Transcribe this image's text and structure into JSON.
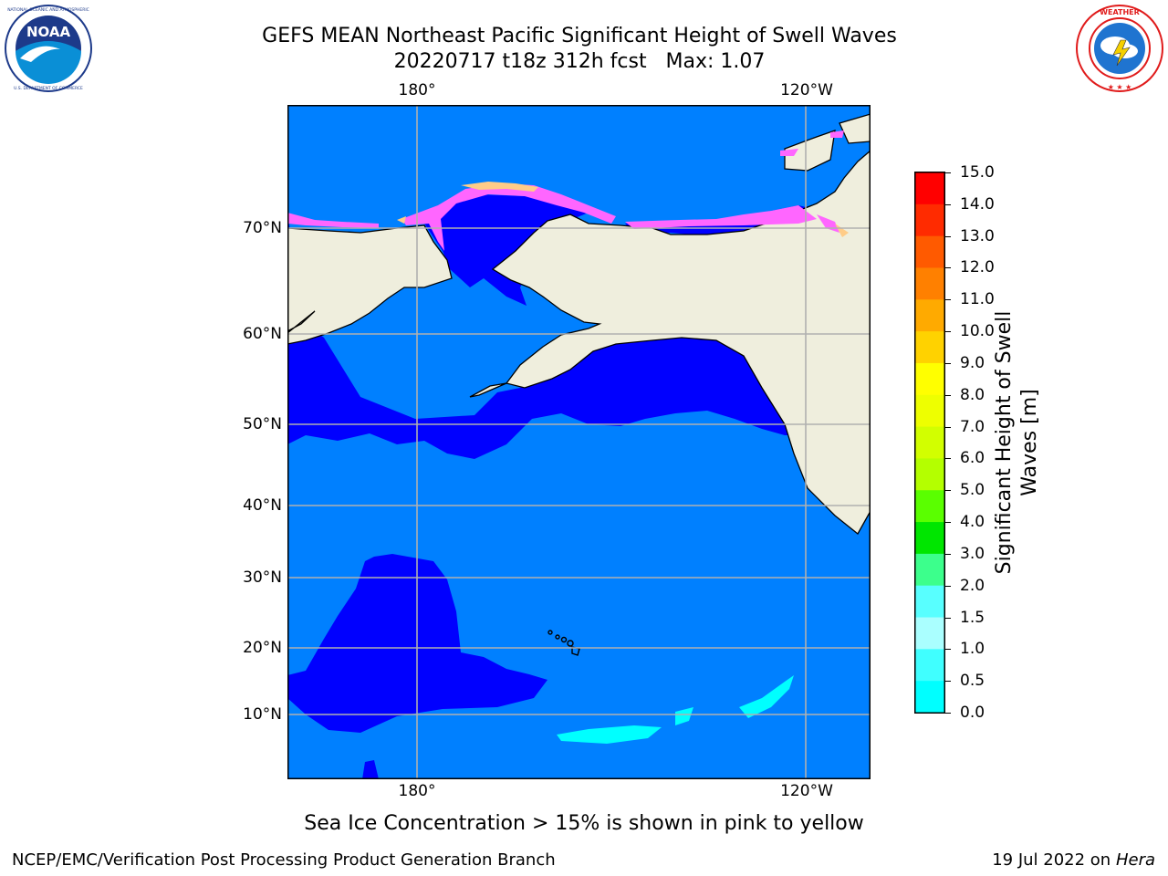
{
  "header": {
    "title_line1": "GEFS MEAN Northeast Pacific Significant Height of Swell Waves",
    "title_line2": "20220717 t18z 312h fcst   Max: 1.07"
  },
  "logos": {
    "left": {
      "name": "NOAA",
      "ring_text": "NATIONAL OCEANIC AND ATMOSPHERIC ADMINISTRATION · U.S. DEPARTMENT OF COMMERCE"
    },
    "right": {
      "name": "National Weather Service",
      "ring_text": "NATIONAL WEATHER SERVICE"
    }
  },
  "map": {
    "lon_labels_top": [
      "180°",
      "120°W"
    ],
    "lon_labels_bottom": [
      "180°",
      "120°W"
    ],
    "lat_labels": [
      "70°N",
      "60°N",
      "50°N",
      "40°N",
      "30°N",
      "20°N",
      "10°N"
    ],
    "colors": {
      "land": "#efeedd",
      "coast": "#000000",
      "grid": "#b0b0b0",
      "swell_0_0.5": "#0000ff",
      "swell_0.5_1.0": "#0080ff",
      "swell_1.0_1.5": "#00ffff",
      "sea_ice": "#ff66ff",
      "sea_ice_edge": "#ffcc88"
    }
  },
  "colorbar": {
    "label": "Significant Height of Swell Waves [m]",
    "ticks": [
      "15.0",
      "14.0",
      "13.0",
      "12.0",
      "11.0",
      "10.0",
      "9.0",
      "8.0",
      "7.0",
      "6.0",
      "5.0",
      "4.0",
      "3.0",
      "2.0",
      "1.5",
      "1.0",
      "0.5",
      "0.0"
    ],
    "colors": [
      "#ff0000",
      "#ff2b00",
      "#ff5a00",
      "#ff8000",
      "#ffaa00",
      "#ffd200",
      "#ffff00",
      "#eeff00",
      "#d2ff00",
      "#b4ff00",
      "#5aff00",
      "#00e600",
      "#3cff8c",
      "#58ffff",
      "#aaffff",
      "#40ffff",
      "#00ffff",
      "#0080ff",
      "#0000ff"
    ]
  },
  "footer": {
    "footnote": "Sea Ice Concentration > 15% is shown in pink to yellow",
    "credit": "NCEP/EMC/Verification Post Processing Product Generation Branch",
    "run_date": "19 Jul 2022 on",
    "host": "Hera"
  }
}
